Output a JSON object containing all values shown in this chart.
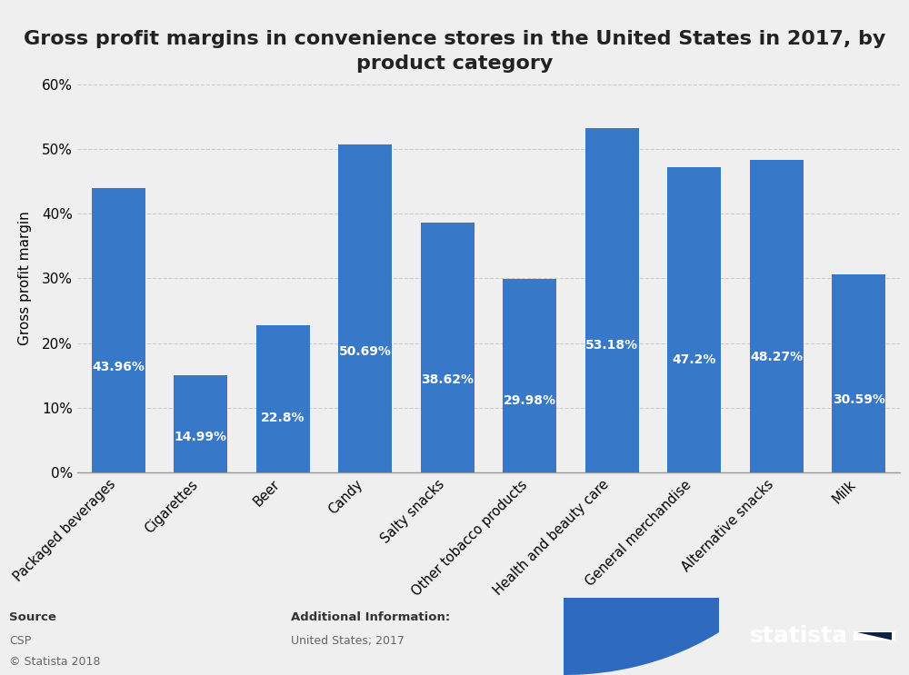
{
  "title": "Gross profit margins in convenience stores in the United States in 2017, by\nproduct category",
  "ylabel": "Gross profit margin",
  "categories": [
    "Packaged beverages",
    "Cigarettes",
    "Beer",
    "Candy",
    "Salty snacks",
    "Other tobacco products",
    "Health and beauty care",
    "General merchandise",
    "Alternative snacks",
    "Milk"
  ],
  "values": [
    43.96,
    14.99,
    22.8,
    50.69,
    38.62,
    29.98,
    53.18,
    47.2,
    48.27,
    30.59
  ],
  "labels": [
    "43.96%",
    "14.99%",
    "22.8%",
    "50.69%",
    "38.62%",
    "29.98%",
    "53.18%",
    "47.2%",
    "48.27%",
    "30.59%"
  ],
  "bar_color": "#3878c8",
  "background_color": "#efefef",
  "plot_background_color": "#efefef",
  "ylim": [
    0,
    60
  ],
  "yticks": [
    0,
    10,
    20,
    30,
    40,
    50,
    60
  ],
  "ytick_labels": [
    "0%",
    "10%",
    "20%",
    "30%",
    "40%",
    "50%",
    "60%"
  ],
  "title_fontsize": 16,
  "label_fontsize": 10,
  "ylabel_fontsize": 11,
  "source_text": "Source",
  "source_detail": "CSP",
  "source_copyright": "© Statista 2018",
  "additional_info_label": "Additional Information:",
  "additional_info_detail": "United States; 2017",
  "footer_bg_color": "#efefef",
  "statista_bg_color": "#0d2240",
  "wave_color": "#2e6bbf",
  "statista_text": "statista"
}
